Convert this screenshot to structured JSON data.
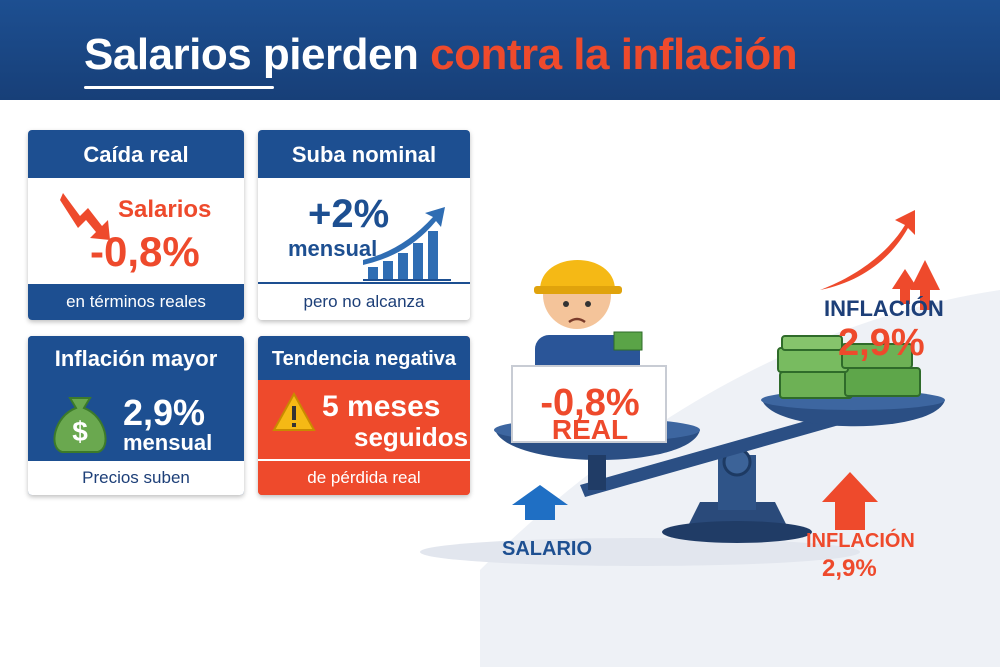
{
  "header": {
    "title_part1": "Salarios pierden",
    "title_part2": "contra la inflación"
  },
  "cards": [
    {
      "title": "Caída real",
      "subject": "Salarios",
      "figure": "-0,8%",
      "footer": "en términos reales"
    },
    {
      "title": "Suba nominal",
      "figure": "+2%",
      "unit": "mensual",
      "footer": "pero no alcanza"
    },
    {
      "title": "Inflación mayor",
      "figure": "2,9%",
      "unit": "mensual",
      "footer": "Precios suben"
    },
    {
      "title": "Tendencia negativa",
      "figure": "5 meses",
      "unit": "seguidos",
      "footer": "de pérdida real"
    }
  ],
  "scale": {
    "left_sign": {
      "figure": "-0,8%",
      "label": "REAL"
    },
    "right_label": {
      "title": "INFLACIÓN",
      "figure": "2,9%"
    },
    "left_arrow_label": "SALARIO",
    "right_arrow_label": {
      "title": "INFLACIÓN",
      "figure": "2,9%"
    }
  }
}
